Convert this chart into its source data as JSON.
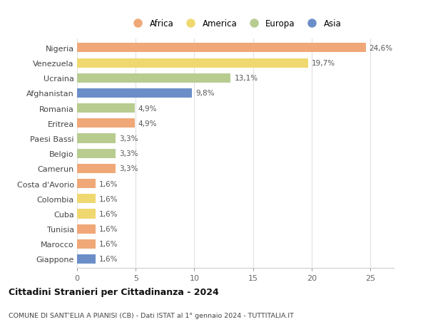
{
  "countries": [
    "Nigeria",
    "Venezuela",
    "Ucraina",
    "Afghanistan",
    "Romania",
    "Eritrea",
    "Paesi Bassi",
    "Belgio",
    "Camerun",
    "Costa d'Avorio",
    "Colombia",
    "Cuba",
    "Tunisia",
    "Marocco",
    "Giappone"
  ],
  "values": [
    24.6,
    19.7,
    13.1,
    9.8,
    4.9,
    4.9,
    3.3,
    3.3,
    3.3,
    1.6,
    1.6,
    1.6,
    1.6,
    1.6,
    1.6
  ],
  "labels": [
    "24,6%",
    "19,7%",
    "13,1%",
    "9,8%",
    "4,9%",
    "4,9%",
    "3,3%",
    "3,3%",
    "3,3%",
    "1,6%",
    "1,6%",
    "1,6%",
    "1,6%",
    "1,6%",
    "1,6%"
  ],
  "continents": [
    "Africa",
    "America",
    "Europa",
    "Asia",
    "Europa",
    "Africa",
    "Europa",
    "Europa",
    "Africa",
    "Africa",
    "America",
    "America",
    "Africa",
    "Africa",
    "Asia"
  ],
  "colors": {
    "Africa": "#F0A878",
    "America": "#F0D870",
    "Europa": "#B8CC90",
    "Asia": "#6B8EC8"
  },
  "legend_order": [
    "Africa",
    "America",
    "Europa",
    "Asia"
  ],
  "title1": "Cittadini Stranieri per Cittadinanza - 2024",
  "title2": "COMUNE DI SANT'ELIA A PIANISI (CB) - Dati ISTAT al 1° gennaio 2024 - TUTTITALIA.IT",
  "xlim": [
    0,
    27
  ],
  "xticks": [
    0,
    5,
    10,
    15,
    20,
    25
  ],
  "background_color": "#ffffff",
  "bar_height": 0.62
}
